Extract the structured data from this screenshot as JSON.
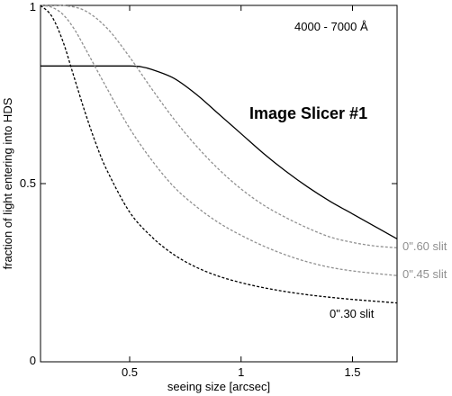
{
  "chart_data": {
    "type": "line",
    "title": "",
    "xlabel": "seeing size [arcsec]",
    "ylabel": "fraction of light entering into HDS",
    "xlim": [
      0.1,
      1.7
    ],
    "ylim": [
      0,
      1
    ],
    "x_ticks": [
      0.5,
      1,
      1.5
    ],
    "x_tick_labels": [
      "0.5",
      "1",
      "1.5"
    ],
    "y_ticks": [
      0,
      0.5,
      1
    ],
    "y_tick_labels": [
      "0",
      "0.5",
      "1"
    ],
    "grid": false,
    "annotations": [
      {
        "id": "wavelength",
        "text": "4000 - 7000 Å"
      },
      {
        "id": "slicer",
        "text": "Image Slicer #1"
      }
    ],
    "series": [
      {
        "name": "Image Slicer #1",
        "style": "solid",
        "color": "#000000",
        "x": [
          0.1,
          0.3,
          0.5,
          0.55,
          0.6,
          0.7,
          0.8,
          0.9,
          1.0,
          1.1,
          1.2,
          1.3,
          1.4,
          1.5,
          1.6,
          1.7
        ],
        "y": [
          0.83,
          0.83,
          0.83,
          0.828,
          0.82,
          0.795,
          0.75,
          0.695,
          0.64,
          0.585,
          0.535,
          0.49,
          0.45,
          0.415,
          0.38,
          0.345
        ]
      },
      {
        "name": "0\".60 slit",
        "style": "dashed",
        "color": "#909090",
        "x": [
          0.1,
          0.2,
          0.3,
          0.4,
          0.5,
          0.6,
          0.7,
          0.8,
          0.9,
          1.0,
          1.1,
          1.2,
          1.3,
          1.4,
          1.5,
          1.6,
          1.7
        ],
        "y": [
          1.0,
          1.0,
          0.985,
          0.935,
          0.855,
          0.765,
          0.68,
          0.605,
          0.54,
          0.485,
          0.44,
          0.405,
          0.375,
          0.35,
          0.335,
          0.325,
          0.32
        ]
      },
      {
        "name": "0\".45 slit",
        "style": "dashed",
        "color": "#909090",
        "x": [
          0.1,
          0.15,
          0.2,
          0.25,
          0.3,
          0.4,
          0.5,
          0.6,
          0.7,
          0.8,
          0.9,
          1.0,
          1.1,
          1.2,
          1.3,
          1.4,
          1.5,
          1.6,
          1.7
        ],
        "y": [
          1.0,
          0.995,
          0.975,
          0.935,
          0.88,
          0.765,
          0.655,
          0.565,
          0.49,
          0.435,
          0.39,
          0.355,
          0.325,
          0.3,
          0.28,
          0.265,
          0.255,
          0.248,
          0.242
        ]
      },
      {
        "name": "0\".30 slit",
        "style": "dashed",
        "color": "#000000",
        "x": [
          0.1,
          0.15,
          0.2,
          0.25,
          0.3,
          0.35,
          0.4,
          0.5,
          0.6,
          0.7,
          0.8,
          0.9,
          1.0,
          1.1,
          1.2,
          1.3,
          1.4,
          1.5,
          1.6,
          1.7
        ],
        "y": [
          1.0,
          0.97,
          0.9,
          0.8,
          0.7,
          0.61,
          0.535,
          0.42,
          0.35,
          0.3,
          0.265,
          0.24,
          0.222,
          0.208,
          0.197,
          0.188,
          0.181,
          0.175,
          0.17,
          0.165
        ]
      }
    ]
  }
}
